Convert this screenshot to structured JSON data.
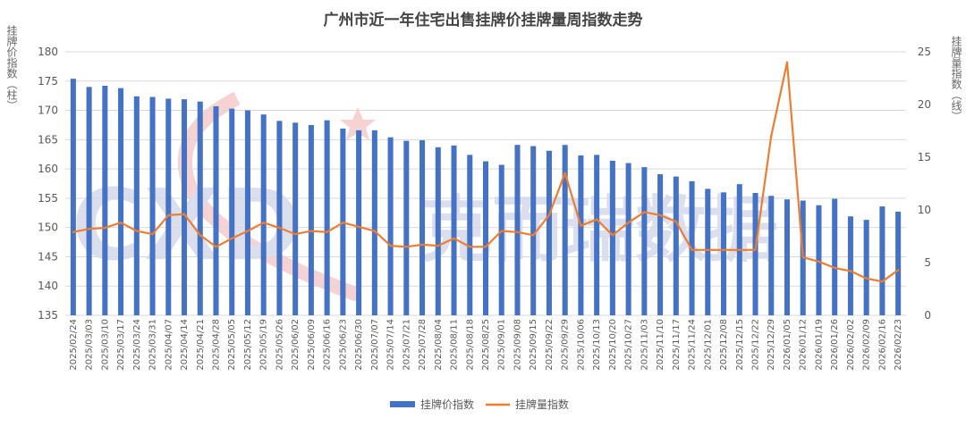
{
  "chart_data": {
    "type": "bar",
    "title": "广州市近一年住宅出售挂牌价挂牌量周指数走势",
    "ylabel": "挂牌价指数（柱）",
    "y2label": "挂牌量指数（线）",
    "ylim": [
      135,
      180
    ],
    "yticks": [
      135,
      140,
      145,
      150,
      155,
      160,
      165,
      170,
      175,
      180
    ],
    "y2lim": [
      0,
      25
    ],
    "y2ticks": [
      0,
      5,
      10,
      15,
      20,
      25
    ],
    "grid": true,
    "legend_position": "bottom",
    "categories": [
      "2025/02/24",
      "2025/03/03",
      "2025/03/10",
      "2025/03/17",
      "2025/03/24",
      "2025/03/31",
      "2025/04/07",
      "2025/04/14",
      "2025/04/21",
      "2025/04/28",
      "2025/05/05",
      "2025/05/12",
      "2025/05/19",
      "2025/05/26",
      "2025/06/02",
      "2025/06/09",
      "2025/06/16",
      "2025/06/23",
      "2025/06/30",
      "2025/07/07",
      "2025/07/14",
      "2025/07/21",
      "2025/07/28",
      "2025/08/04",
      "2025/08/11",
      "2025/08/18",
      "2025/08/25",
      "2025/09/01",
      "2025/09/08",
      "2025/09/15",
      "2025/09/22",
      "2025/09/29",
      "2025/10/06",
      "2025/10/13",
      "2025/10/20",
      "2025/10/27",
      "2025/11/03",
      "2025/11/10",
      "2025/11/17",
      "2025/11/24",
      "2025/12/01",
      "2025/12/08",
      "2025/12/15",
      "2025/12/22",
      "2025/12/29",
      "2026/01/05",
      "2026/01/12",
      "2026/01/19",
      "2026/01/26",
      "2026/02/02",
      "2026/02/09",
      "2026/02/16",
      "2026/02/23"
    ],
    "series": [
      {
        "name": "挂牌价指数",
        "type": "bar",
        "axis": "left",
        "color": "#4472C4",
        "values": [
          175.4,
          174.0,
          174.2,
          173.8,
          172.4,
          172.3,
          172.0,
          171.9,
          171.5,
          170.7,
          170.3,
          170.0,
          169.3,
          168.2,
          167.9,
          167.5,
          168.3,
          166.9,
          166.6,
          166.6,
          165.4,
          164.8,
          164.9,
          163.7,
          164.0,
          162.4,
          161.3,
          160.7,
          164.1,
          163.9,
          163.1,
          164.1,
          162.3,
          162.4,
          161.4,
          161.0,
          160.3,
          159.1,
          158.7,
          157.9,
          156.6,
          156.0,
          157.4,
          155.9,
          155.4,
          154.8,
          154.6,
          153.8,
          154.9,
          151.9,
          151.3,
          153.6,
          152.7
        ]
      },
      {
        "name": "挂牌量指数",
        "type": "line",
        "axis": "right",
        "color": "#ED7D31",
        "values": [
          7.9,
          8.2,
          8.3,
          8.8,
          8.0,
          7.7,
          9.5,
          9.6,
          7.6,
          6.5,
          7.3,
          8.0,
          8.8,
          8.3,
          7.7,
          8.0,
          7.9,
          8.8,
          8.4,
          8.0,
          6.6,
          6.5,
          6.7,
          6.6,
          7.3,
          6.5,
          6.5,
          8.0,
          7.9,
          7.6,
          9.5,
          13.5,
          8.5,
          9.1,
          7.6,
          8.8,
          9.8,
          9.5,
          8.9,
          6.2,
          6.2,
          6.2,
          6.2,
          6.2,
          17.0,
          24.0,
          5.5,
          5.1,
          4.5,
          4.2,
          3.5,
          3.2,
          4.3
        ]
      }
    ]
  },
  "watermark": {
    "logo_text": "CXD",
    "brand_text": "克而瑞数据",
    "color": "#9aa6c9"
  }
}
